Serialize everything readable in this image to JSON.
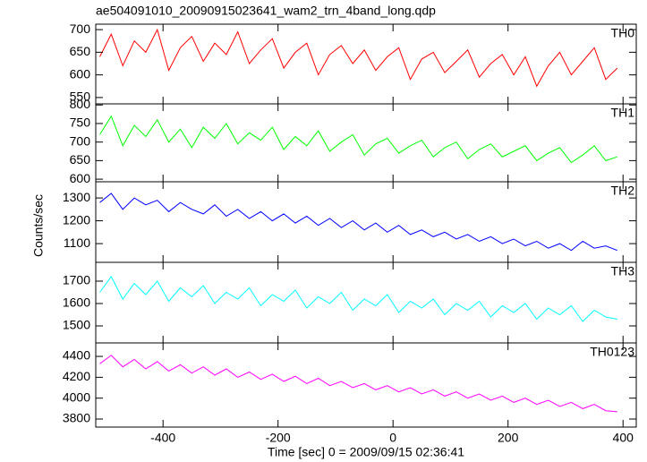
{
  "y_label": "Counts/sec",
  "chart_data": [
    {
      "type": "line",
      "title": "ae504091010_20090915023641_wam2_trn_4band_long.qdp",
      "label": "TH0",
      "color": "#ff0000",
      "x": [
        -510,
        -490,
        -470,
        -450,
        -430,
        -410,
        -390,
        -370,
        -350,
        -330,
        -310,
        -290,
        -270,
        -250,
        -230,
        -210,
        -190,
        -170,
        -150,
        -130,
        -110,
        -90,
        -70,
        -50,
        -30,
        -10,
        10,
        30,
        50,
        70,
        90,
        110,
        130,
        150,
        170,
        190,
        210,
        230,
        250,
        270,
        290,
        310,
        330,
        350,
        370,
        390
      ],
      "values": [
        640,
        690,
        620,
        675,
        650,
        700,
        610,
        660,
        685,
        630,
        670,
        645,
        695,
        625,
        655,
        680,
        615,
        650,
        670,
        600,
        645,
        665,
        625,
        655,
        610,
        640,
        660,
        590,
        635,
        650,
        605,
        630,
        655,
        595,
        625,
        645,
        600,
        640,
        575,
        620,
        650,
        600,
        630,
        660,
        590,
        615
      ],
      "xlim": [
        -517,
        423
      ],
      "xticks": [
        -400,
        -200,
        0,
        200,
        400
      ],
      "ylim": [
        536,
        712
      ],
      "yticks": [
        550,
        600,
        650,
        700
      ]
    },
    {
      "type": "line",
      "label": "TH1",
      "color": "#00ff00",
      "x": [
        -510,
        -490,
        -470,
        -450,
        -430,
        -410,
        -390,
        -370,
        -350,
        -330,
        -310,
        -290,
        -270,
        -250,
        -230,
        -210,
        -190,
        -170,
        -150,
        -130,
        -110,
        -90,
        -70,
        -50,
        -30,
        -10,
        10,
        30,
        50,
        70,
        90,
        110,
        130,
        150,
        170,
        190,
        210,
        230,
        250,
        270,
        290,
        310,
        330,
        350,
        370,
        390
      ],
      "values": [
        720,
        770,
        690,
        745,
        715,
        760,
        700,
        735,
        685,
        740,
        710,
        750,
        695,
        725,
        705,
        740,
        680,
        715,
        690,
        730,
        675,
        700,
        720,
        665,
        695,
        710,
        670,
        690,
        705,
        660,
        685,
        700,
        655,
        680,
        695,
        660,
        675,
        690,
        650,
        670,
        685,
        645,
        665,
        690,
        650,
        660
      ],
      "xlim": [
        -517,
        423
      ],
      "xticks": [
        -400,
        -200,
        0,
        200,
        400
      ],
      "ylim": [
        593,
        803
      ],
      "yticks": [
        600,
        650,
        700,
        750,
        800
      ]
    },
    {
      "type": "line",
      "label": "TH2",
      "color": "#0000ff",
      "x": [
        -510,
        -490,
        -470,
        -450,
        -430,
        -410,
        -390,
        -370,
        -350,
        -330,
        -310,
        -290,
        -270,
        -250,
        -230,
        -210,
        -190,
        -170,
        -150,
        -130,
        -110,
        -90,
        -70,
        -50,
        -30,
        -10,
        10,
        30,
        50,
        70,
        90,
        110,
        130,
        150,
        170,
        190,
        210,
        230,
        250,
        270,
        290,
        310,
        330,
        350,
        370,
        390
      ],
      "values": [
        1280,
        1320,
        1250,
        1300,
        1270,
        1290,
        1240,
        1280,
        1250,
        1230,
        1270,
        1220,
        1250,
        1210,
        1240,
        1200,
        1230,
        1190,
        1220,
        1180,
        1210,
        1170,
        1200,
        1160,
        1190,
        1150,
        1180,
        1140,
        1160,
        1130,
        1150,
        1120,
        1140,
        1110,
        1130,
        1100,
        1120,
        1090,
        1110,
        1080,
        1100,
        1070,
        1110,
        1080,
        1090,
        1070
      ],
      "xlim": [
        -517,
        423
      ],
      "xticks": [
        -400,
        -200,
        0,
        200,
        400
      ],
      "ylim": [
        1018,
        1371
      ],
      "yticks": [
        1100,
        1200,
        1300
      ]
    },
    {
      "type": "line",
      "label": "TH3",
      "color": "#00ffff",
      "x": [
        -510,
        -490,
        -470,
        -450,
        -430,
        -410,
        -390,
        -370,
        -350,
        -330,
        -310,
        -290,
        -270,
        -250,
        -230,
        -210,
        -190,
        -170,
        -150,
        -130,
        -110,
        -90,
        -70,
        -50,
        -30,
        -10,
        10,
        30,
        50,
        70,
        90,
        110,
        130,
        150,
        170,
        190,
        210,
        230,
        250,
        270,
        290,
        310,
        330,
        350,
        370,
        390
      ],
      "values": [
        1650,
        1720,
        1620,
        1690,
        1640,
        1700,
        1610,
        1670,
        1630,
        1680,
        1600,
        1650,
        1620,
        1670,
        1590,
        1640,
        1610,
        1660,
        1580,
        1630,
        1600,
        1650,
        1570,
        1620,
        1590,
        1640,
        1560,
        1610,
        1580,
        1620,
        1550,
        1600,
        1570,
        1610,
        1540,
        1590,
        1560,
        1600,
        1530,
        1580,
        1550,
        1590,
        1520,
        1570,
        1540,
        1530
      ],
      "xlim": [
        -517,
        423
      ],
      "xticks": [
        -400,
        -200,
        0,
        200,
        400
      ],
      "ylim": [
        1424,
        1784
      ],
      "yticks": [
        1500,
        1600,
        1700
      ]
    },
    {
      "type": "line",
      "label": "TH0123",
      "color": "#ff00ff",
      "x_label": "Time [sec] 0 = 2009/09/15 02:36:41",
      "x": [
        -510,
        -490,
        -470,
        -450,
        -430,
        -410,
        -390,
        -370,
        -350,
        -330,
        -310,
        -290,
        -270,
        -250,
        -230,
        -210,
        -190,
        -170,
        -150,
        -130,
        -110,
        -90,
        -70,
        -50,
        -30,
        -10,
        10,
        30,
        50,
        70,
        90,
        110,
        130,
        150,
        170,
        190,
        210,
        230,
        250,
        270,
        290,
        310,
        330,
        350,
        370,
        390
      ],
      "values": [
        4330,
        4410,
        4300,
        4370,
        4280,
        4350,
        4260,
        4320,
        4240,
        4300,
        4220,
        4280,
        4200,
        4250,
        4180,
        4230,
        4160,
        4210,
        4140,
        4190,
        4120,
        4160,
        4100,
        4140,
        4080,
        4120,
        4060,
        4100,
        4040,
        4080,
        4020,
        4060,
        4000,
        4040,
        3980,
        4020,
        3960,
        4000,
        3940,
        3980,
        3920,
        3960,
        3900,
        3940,
        3880,
        3870
      ],
      "xlim": [
        -517,
        423
      ],
      "xticks": [
        -400,
        -200,
        0,
        200,
        400
      ],
      "ylim": [
        3723,
        4529
      ],
      "yticks": [
        3800,
        4000,
        4200,
        4400
      ]
    }
  ]
}
